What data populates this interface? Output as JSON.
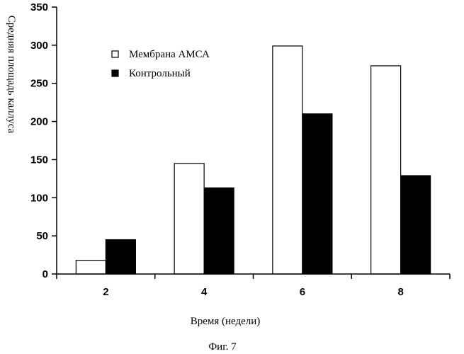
{
  "chart_data": {
    "type": "bar",
    "title": "",
    "ylabel": "Средняя площадь каллуса",
    "xlabel": "Время (недели)",
    "caption": "Фиг. 7",
    "categories": [
      "2",
      "4",
      "6",
      "8"
    ],
    "series": [
      {
        "name": "Мембрана АМСА",
        "fill": "#ffffff",
        "values": [
          18,
          145,
          299,
          273
        ]
      },
      {
        "name": "Контрольный",
        "fill": "#000000",
        "values": [
          45,
          113,
          210,
          129
        ]
      }
    ],
    "ylim": [
      0,
      350
    ],
    "yticks": [
      0,
      50,
      100,
      150,
      200,
      250,
      300,
      350
    ],
    "legend_position": "top-left",
    "grid": false
  }
}
